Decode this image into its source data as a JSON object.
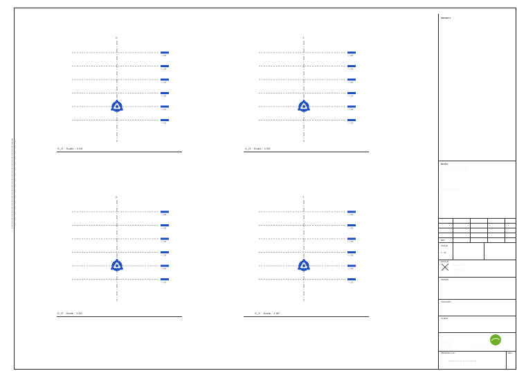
{
  "sheet": {
    "edge_note": "· · · · · · · · · · · · · · · · · · · · · · · ·"
  },
  "viewports": [
    {
      "id": "vp-top-left",
      "axis_label": "X",
      "title": "X_G · Scale : 1:50",
      "level_tags": [
        "— L.06",
        "— L.05",
        "— L.04",
        "— L.03",
        "— L.02",
        "— L.01"
      ]
    },
    {
      "id": "vp-top-right",
      "axis_label": "Y",
      "title": "X_G · Scale : 1:50",
      "level_tags": [
        "— L.06",
        "— L.05",
        "— L.04",
        "— L.03",
        "— L.02",
        "— L.01"
      ]
    },
    {
      "id": "vp-bottom-left",
      "axis_label": "X",
      "title": "X_S · Scale : 1:50",
      "level_tags": [
        "— L.06",
        "— L.05",
        "— L.04",
        "— L.03",
        "— L.02",
        "— L.01"
      ]
    },
    {
      "id": "vp-bottom-right",
      "axis_label": "Y",
      "title": "X_S · Scale : 1:50",
      "level_tags": [
        "— L.06",
        "— L.05",
        "— L.04",
        "— L.03",
        "— L.02",
        "— L.01"
      ]
    }
  ],
  "title_block": {
    "header": "PROJECT",
    "notes_heading": "NOTES",
    "note_1": "· · · · · · · · · · · · · · · · · · · · · ·",
    "note_2": "· · · · · · · · · · · · · · · ·",
    "revision_label": "REV",
    "scale_label": "SCALE",
    "scale_value": "1 : 50",
    "status_label": "STATUS",
    "status_lines": [
      "· · · · · · · ·",
      "· · · · · · · · · ·",
      "· · · · · · · ·"
    ],
    "drawn_label": "DRAWN",
    "checked_label": "CHECKED",
    "client_label": "CLIENT",
    "firm_lines": [
      "· · · · · · · · ·",
      "· · · · · · · ·"
    ],
    "logo_caption": "· · · · · · · · · · · · · · ·",
    "drawing_no_label": "DRAWING NO.",
    "drawing_number": "· · · · · · · · · · · · · · · · ·",
    "rev_label": "REV",
    "accent_color": "#1f4fbf",
    "logo_color": "#6cae2a"
  }
}
